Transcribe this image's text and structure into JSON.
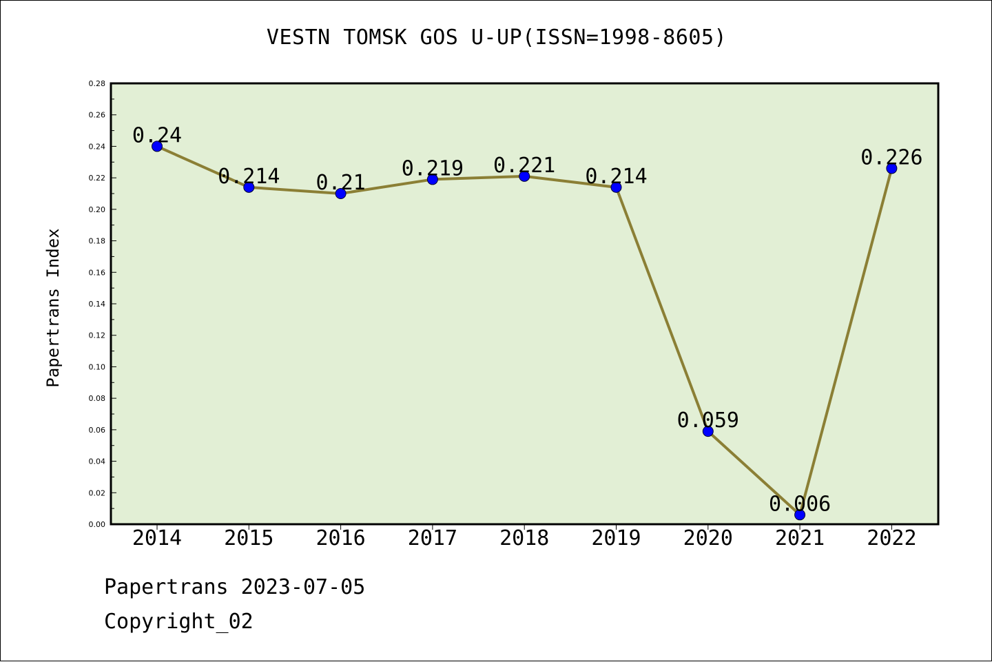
{
  "chart_data": {
    "type": "line",
    "title": "VESTN TOMSK GOS U-UP(ISSN=1998-8605)",
    "xlabel": "",
    "ylabel": "Papertrans Index",
    "categories": [
      "2014",
      "2015",
      "2016",
      "2017",
      "2018",
      "2019",
      "2020",
      "2021",
      "2022"
    ],
    "series": [
      {
        "values": [
          0.24,
          0.214,
          0.21,
          0.219,
          0.221,
          0.214,
          0.059,
          0.006,
          0.226
        ],
        "labels": [
          "0.24",
          "0.214",
          "0.21",
          "0.219",
          "0.221",
          "0.214",
          "0.059",
          "0.006",
          "0.226"
        ]
      }
    ],
    "ylim": [
      0,
      0.28
    ],
    "yticks": [
      "0.00",
      "0.02",
      "0.04",
      "0.06",
      "0.08",
      "0.10",
      "0.12",
      "0.14",
      "0.16",
      "0.18",
      "0.20",
      "0.22",
      "0.24",
      "0.26",
      "0.28"
    ],
    "grid": false,
    "colors": {
      "plot_background": "#e2efd5",
      "line": "#8b7f35",
      "marker": "#0000ff"
    }
  },
  "footer": {
    "source": "Papertrans 2023-07-05",
    "copyright": "Copyright_02"
  }
}
